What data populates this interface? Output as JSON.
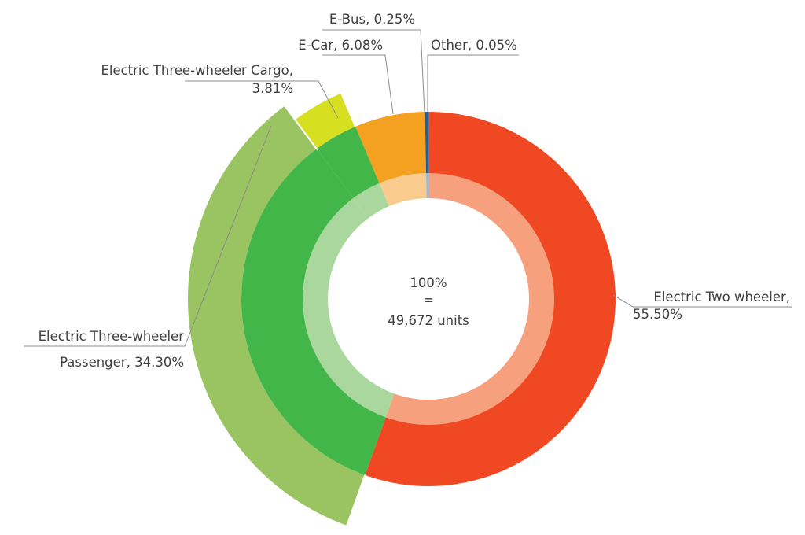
{
  "chart_data": {
    "type": "pie",
    "center_text": {
      "line1": "100%",
      "line2": "=",
      "line3": "49,672 units"
    },
    "segments": [
      {
        "category": "Electric Two wheeler",
        "value": 55.5,
        "label_line1": "Electric Two wheeler,",
        "label_line2": "55.50%",
        "color": "#EF4823",
        "inner_color": "#F7A07D"
      },
      {
        "category": "Electric Three-wheeler Passenger",
        "value": 34.3,
        "label_line1": "Electric Three-wheeler",
        "label_line2": "Passenger, 34.30%",
        "color": "#43B649",
        "outer_color": "#9AC462",
        "inner_color": "#A9D79D"
      },
      {
        "category": "Electric Three-wheeler Cargo",
        "value": 3.81,
        "label_line1": "Electric Three-wheeler Cargo,",
        "label_line2": "3.81%",
        "color": "#43B649",
        "outer_color": "#D6E021",
        "inner_color": "#A9D79D"
      },
      {
        "category": "E-Car",
        "value": 6.08,
        "label_line1": "E-Car, 6.08%",
        "color": "#F4A020",
        "inner_color": "#F9CB8D"
      },
      {
        "category": "E-Bus",
        "value": 0.25,
        "label_line1": "E-Bus, 0.25%",
        "color": "#1F5FA8",
        "inner_color": "#9BB7D9"
      },
      {
        "category": "Other",
        "value": 0.05,
        "label_line1": "Other, 0.05%",
        "color": "#2FA2C9",
        "inner_color": "#A8D8EA"
      }
    ]
  }
}
